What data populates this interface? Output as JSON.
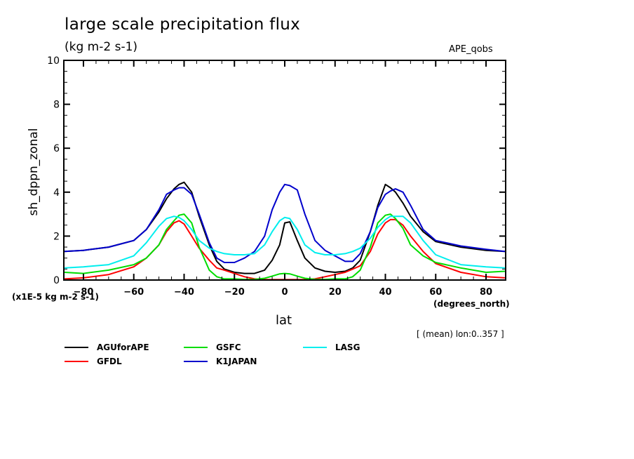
{
  "chart_data": {
    "type": "line",
    "title": "large scale precipitation flux",
    "units": "(kg m-2 s-1)",
    "dataset_label": "APE_qobs",
    "xlabel": "lat",
    "xunits": "(degrees_north)",
    "ylabel": "sh_dppn_zonal",
    "y_scale_note": "(x1E-5 kg m-2 s-1)",
    "footnote": "[ (mean) lon:0..357 ]",
    "xlim": [
      -87.8,
      87.8
    ],
    "ylim": [
      0,
      10
    ],
    "xticks": [
      -80,
      -60,
      -40,
      -20,
      0,
      20,
      40,
      60,
      80
    ],
    "xtick_labels": [
      "-80",
      "-60",
      "-40",
      "-20",
      "0",
      "20",
      "40",
      "60",
      "80"
    ],
    "yticks": [
      0,
      2,
      4,
      6,
      8,
      10
    ],
    "ytick_labels": [
      "0",
      "2",
      "4",
      "6",
      "8",
      "10"
    ],
    "x": [
      -87.5,
      -80,
      -70,
      -60,
      -55,
      -50,
      -47,
      -44,
      -42,
      -40,
      -37,
      -34,
      -30,
      -27,
      -24,
      -20,
      -16,
      -12,
      -8,
      -5,
      -2,
      0,
      2,
      5,
      8,
      12,
      16,
      20,
      24,
      27,
      30,
      34,
      37,
      40,
      42,
      44,
      47,
      50,
      55,
      60,
      70,
      80,
      87.5
    ],
    "series": [
      {
        "name": "AGUforAPE",
        "color": "#000000",
        "values": [
          1.3,
          1.35,
          1.5,
          1.8,
          2.3,
          3.1,
          3.7,
          4.15,
          4.35,
          4.45,
          4.0,
          2.9,
          1.6,
          0.85,
          0.5,
          0.35,
          0.3,
          0.3,
          0.45,
          0.9,
          1.6,
          2.6,
          2.65,
          1.8,
          1.0,
          0.55,
          0.4,
          0.35,
          0.4,
          0.55,
          0.9,
          2.2,
          3.4,
          4.35,
          4.2,
          4.0,
          3.5,
          2.9,
          2.2,
          1.75,
          1.5,
          1.35,
          1.3
        ]
      },
      {
        "name": "GFDL",
        "color": "#ff0000",
        "values": [
          0.05,
          0.1,
          0.25,
          0.6,
          1.0,
          1.6,
          2.2,
          2.6,
          2.7,
          2.55,
          2.0,
          1.45,
          0.9,
          0.55,
          0.45,
          0.3,
          0.15,
          0.05,
          0.02,
          0.02,
          0.02,
          0.02,
          0.02,
          0.02,
          0.02,
          0.05,
          0.15,
          0.25,
          0.35,
          0.5,
          0.65,
          1.3,
          2.1,
          2.6,
          2.75,
          2.75,
          2.5,
          2.0,
          1.3,
          0.75,
          0.35,
          0.15,
          0.1
        ]
      },
      {
        "name": "GSFC",
        "color": "#00dd00",
        "values": [
          0.35,
          0.3,
          0.45,
          0.7,
          1.0,
          1.6,
          2.3,
          2.7,
          2.95,
          3.0,
          2.6,
          1.5,
          0.45,
          0.15,
          0.05,
          0.05,
          0.03,
          0.03,
          0.08,
          0.18,
          0.28,
          0.3,
          0.28,
          0.18,
          0.08,
          0.03,
          0.03,
          0.05,
          0.05,
          0.15,
          0.45,
          1.5,
          2.6,
          2.95,
          3.0,
          2.8,
          2.35,
          1.6,
          1.1,
          0.8,
          0.55,
          0.35,
          0.4
        ]
      },
      {
        "name": "K1JAPAN",
        "color": "#0000cc",
        "values": [
          1.3,
          1.35,
          1.5,
          1.8,
          2.3,
          3.2,
          3.9,
          4.1,
          4.2,
          4.2,
          3.9,
          3.0,
          1.7,
          1.0,
          0.8,
          0.8,
          1.0,
          1.3,
          2.0,
          3.2,
          4.0,
          4.35,
          4.3,
          4.1,
          3.0,
          1.8,
          1.35,
          1.1,
          0.85,
          0.85,
          1.2,
          2.2,
          3.3,
          3.9,
          4.05,
          4.15,
          4.0,
          3.4,
          2.3,
          1.8,
          1.55,
          1.4,
          1.3
        ]
      },
      {
        "name": "LASG",
        "color": "#00eeee",
        "values": [
          0.55,
          0.6,
          0.7,
          1.1,
          1.7,
          2.45,
          2.8,
          2.9,
          2.85,
          2.7,
          2.3,
          1.8,
          1.45,
          1.3,
          1.2,
          1.15,
          1.15,
          1.2,
          1.6,
          2.2,
          2.7,
          2.85,
          2.8,
          2.3,
          1.6,
          1.25,
          1.15,
          1.15,
          1.2,
          1.3,
          1.45,
          1.9,
          2.4,
          2.75,
          2.9,
          2.9,
          2.9,
          2.6,
          1.8,
          1.15,
          0.7,
          0.6,
          0.55
        ]
      }
    ],
    "legend": {
      "placement": "bottom-left",
      "columns": 3
    },
    "grid": false
  }
}
